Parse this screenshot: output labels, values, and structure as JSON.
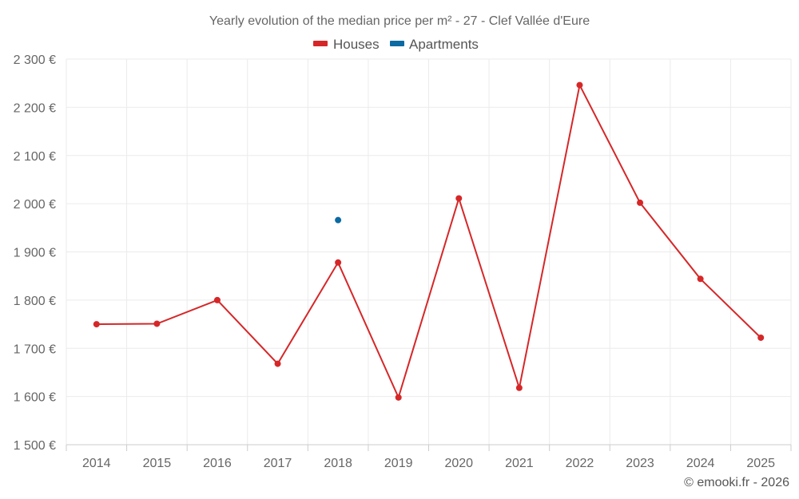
{
  "title": "Yearly evolution of the median price per m² - 27 - Clef Vallée d'Eure",
  "credit": "© emooki.fr - 2026",
  "colors": {
    "houses": "#d62728",
    "apartments": "#0b6aa2"
  },
  "chart_data": {
    "type": "line",
    "title": "Yearly evolution of the median price per m² - 27 - Clef Vallée d'Eure",
    "xlabel": "",
    "ylabel": "",
    "categories": [
      "2014",
      "2015",
      "2016",
      "2017",
      "2018",
      "2019",
      "2020",
      "2021",
      "2022",
      "2023",
      "2024",
      "2025"
    ],
    "ylim": [
      1500,
      2300
    ],
    "yticks": [
      1500,
      1600,
      1700,
      1800,
      1900,
      2000,
      2100,
      2200,
      2300
    ],
    "ytick_labels": [
      "1 500 €",
      "1 600 €",
      "1 700 €",
      "1 800 €",
      "1 900 €",
      "2 000 €",
      "2 100 €",
      "2 200 €",
      "2 300 €"
    ],
    "legend_position": "top-center",
    "grid": true,
    "series": [
      {
        "name": "Houses",
        "values": [
          1750,
          1751,
          1800,
          1668,
          1878,
          1598,
          2011,
          1618,
          2246,
          2002,
          1844,
          1722
        ]
      },
      {
        "name": "Apartments",
        "values": [
          null,
          null,
          null,
          null,
          1966,
          null,
          null,
          null,
          null,
          null,
          null,
          null
        ]
      }
    ]
  }
}
